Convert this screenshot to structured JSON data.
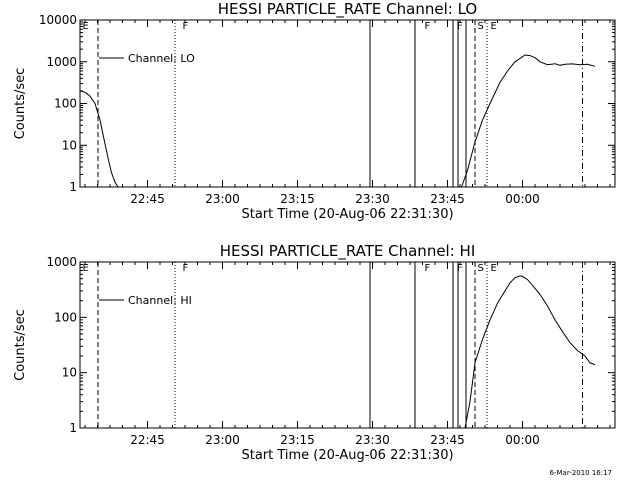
{
  "chart_data": [
    {
      "type": "line",
      "title": "HESSI PARTICLE_RATE Channel: LO",
      "ylabel": "Counts/sec",
      "xlabel": "Start Time (20-Aug-06 22:31:30)",
      "yscale": "log",
      "ylim": [
        1,
        10000
      ],
      "xlim_minutes": [
        0,
        107
      ],
      "ytick_labels": [
        "1",
        "10",
        "100",
        "1000",
        "10000"
      ],
      "ytick_values": [
        1,
        10,
        100,
        1000,
        10000
      ],
      "xtick_labels": [
        "22:45",
        "23:00",
        "23:15",
        "23:30",
        "23:45",
        "00:00"
      ],
      "xtick_values": [
        13.5,
        28.5,
        43.5,
        58.5,
        73.5,
        88.5
      ],
      "legend": "Channel: LO",
      "legend_position": "top-left",
      "series": [
        {
          "x": [
            0,
            1,
            2,
            3,
            4,
            4.8,
            5.6,
            6.3,
            7,
            7.6
          ],
          "y": [
            200,
            185,
            150,
            100,
            40,
            14,
            5,
            2.2,
            1.3,
            1
          ]
        },
        {
          "x": [
            76.3,
            77.5,
            79,
            80.5,
            82,
            84,
            85.5,
            87,
            88,
            89,
            90,
            91,
            92,
            93.5,
            95,
            96,
            97,
            98.5,
            100,
            101.5,
            103
          ],
          "y": [
            1,
            2.5,
            12,
            40,
            100,
            320,
            600,
            1000,
            1200,
            1450,
            1400,
            1250,
            1000,
            850,
            900,
            820,
            870,
            890,
            850,
            870,
            780
          ]
        }
      ],
      "flag_labels": [
        {
          "text": "E",
          "x": 0.3
        },
        {
          "text": "F",
          "x": 20.3
        },
        {
          "text": "F",
          "x": 68.7
        },
        {
          "text": "F",
          "x": 75.2
        },
        {
          "text": "S",
          "x": 79.3
        },
        {
          "text": "E",
          "x": 81.9
        }
      ]
    },
    {
      "type": "line",
      "title": "HESSI PARTICLE_RATE Channel: HI",
      "ylabel": "Counts/sec",
      "xlabel": "Start Time (20-Aug-06 22:31:30)",
      "yscale": "log",
      "ylim": [
        1,
        1000
      ],
      "xlim_minutes": [
        0,
        107
      ],
      "ytick_labels": [
        "1",
        "10",
        "100",
        "1000"
      ],
      "ytick_values": [
        1,
        10,
        100,
        1000
      ],
      "xtick_labels": [
        "22:45",
        "23:00",
        "23:15",
        "23:30",
        "23:45",
        "00:00"
      ],
      "xtick_values": [
        13.5,
        28.5,
        43.5,
        58.5,
        73.5,
        88.5
      ],
      "legend": "Channel: HI",
      "legend_position": "top-left",
      "series": [
        {
          "x": [
            77,
            78,
            79,
            80.5,
            82,
            83.5,
            85,
            86,
            87,
            88,
            88.5,
            89.5,
            90.5,
            92,
            93.5,
            95,
            96.5,
            98,
            99.5,
            101,
            102,
            103
          ],
          "y": [
            1,
            3,
            15,
            40,
            90,
            180,
            300,
            420,
            520,
            560,
            550,
            480,
            380,
            260,
            160,
            90,
            55,
            35,
            25,
            20,
            15,
            14
          ]
        }
      ],
      "flag_labels": [
        {
          "text": "E",
          "x": 0.3
        },
        {
          "text": "F",
          "x": 20.3
        },
        {
          "text": "F",
          "x": 68.7
        },
        {
          "text": "F",
          "x": 75.2
        },
        {
          "text": "S",
          "x": 79.3
        },
        {
          "text": "E",
          "x": 81.9
        }
      ]
    }
  ],
  "event_lines": [
    {
      "x": 3.6,
      "style": "dashed"
    },
    {
      "x": 19.0,
      "style": "dotted"
    },
    {
      "x": 58.0,
      "style": "solid"
    },
    {
      "x": 67.0,
      "style": "solid"
    },
    {
      "x": 74.6,
      "style": "solid"
    },
    {
      "x": 75.6,
      "style": "solid"
    },
    {
      "x": 77.2,
      "style": "solid"
    },
    {
      "x": 79.0,
      "style": "dashed"
    },
    {
      "x": 81.4,
      "style": "dotted"
    },
    {
      "x": 100.5,
      "style": "dashdot"
    }
  ],
  "timestamp": "6-Mar-2010 16:17"
}
